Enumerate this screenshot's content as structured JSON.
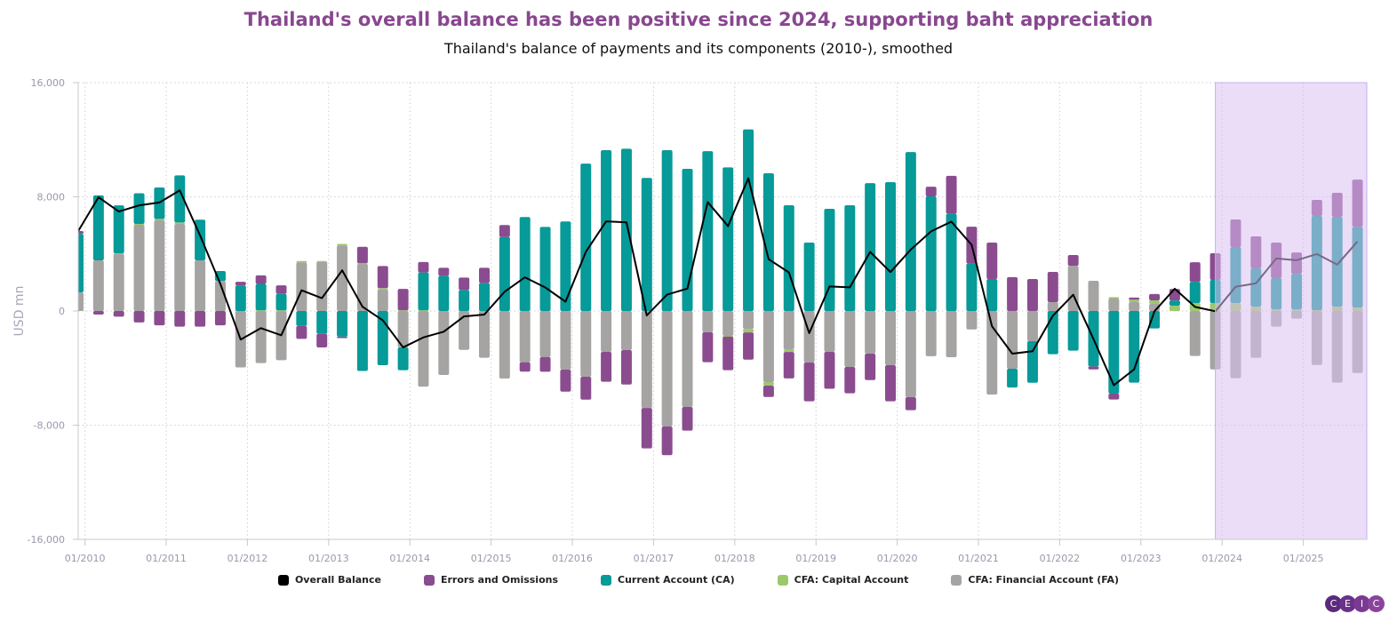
{
  "chart_data": {
    "type": "bar",
    "stacked": true,
    "title": "Thailand's overall balance has been positive since 2024, supporting baht appreciation",
    "subtitle": "Thailand's balance of payments and its components (2010-), smoothed",
    "ylabel": "USD mn",
    "ylim": [
      -16000,
      16000
    ],
    "yticks": [
      "16,000",
      "8,000",
      "0",
      "-8,000",
      "-16,000"
    ],
    "xticks": [
      "01/2010",
      "01/2011",
      "01/2012",
      "01/2013",
      "01/2014",
      "01/2015",
      "01/2016",
      "01/2017",
      "01/2018",
      "01/2019",
      "01/2020",
      "01/2021",
      "01/2022",
      "01/2023",
      "01/2024",
      "01/2025"
    ],
    "grid": true,
    "legend_position": "bottom",
    "shaded_period": {
      "from": "12/2023",
      "to": "end",
      "color": "#ecdff7"
    },
    "x": [
      "12/2009",
      "03/2010",
      "06/2010",
      "09/2010",
      "12/2010",
      "03/2011",
      "06/2011",
      "09/2011",
      "12/2011",
      "03/2012",
      "06/2012",
      "09/2012",
      "12/2012",
      "03/2013",
      "06/2013",
      "09/2013",
      "12/2013",
      "03/2014",
      "06/2014",
      "09/2014",
      "12/2014",
      "03/2015",
      "06/2015",
      "09/2015",
      "12/2015",
      "03/2016",
      "06/2016",
      "09/2016",
      "12/2016",
      "03/2017",
      "06/2017",
      "09/2017",
      "12/2017",
      "03/2018",
      "06/2018",
      "09/2018",
      "12/2018",
      "03/2019",
      "06/2019",
      "09/2019",
      "12/2019",
      "03/2020",
      "06/2020",
      "09/2020",
      "12/2020",
      "03/2021",
      "06/2021",
      "09/2021",
      "12/2021",
      "03/2022",
      "06/2022",
      "09/2022",
      "12/2022",
      "03/2023",
      "06/2023",
      "09/2023",
      "12/2023",
      "03/2024",
      "06/2024",
      "09/2024",
      "12/2024",
      "03/2025",
      "06/2025",
      "09/2025"
    ],
    "series": [
      {
        "name": "CFA: Financial Account (FA)",
        "type": "bar",
        "color": "#a5a4a2",
        "values": [
          1300,
          3550,
          4000,
          6050,
          6350,
          6100,
          3550,
          2100,
          -3950,
          -3650,
          -3450,
          3400,
          3450,
          4600,
          3300,
          1500,
          -2550,
          -5300,
          -4480,
          -2720,
          -3280,
          -4730,
          -3590,
          -3220,
          -4110,
          -4610,
          -2860,
          -2740,
          -6790,
          -8090,
          -6720,
          -1490,
          -1740,
          -1250,
          -4980,
          -2680,
          -3610,
          -2860,
          -3920,
          -2990,
          -3800,
          -6040,
          -3170,
          -3240,
          -1290,
          -5850,
          -4050,
          -2120,
          620,
          3170,
          2120,
          870,
          620,
          500,
          0,
          -3150,
          -4090,
          -4710,
          -3280,
          -1100,
          -540,
          -3780,
          -5020,
          -4340
        ]
      },
      {
        "name": "CFA: Capital Account",
        "type": "bar",
        "color": "#9dc86a",
        "values": [
          0,
          0,
          50,
          50,
          100,
          100,
          0,
          0,
          0,
          50,
          50,
          100,
          50,
          100,
          50,
          100,
          50,
          50,
          0,
          0,
          0,
          0,
          0,
          0,
          0,
          0,
          0,
          0,
          0,
          0,
          0,
          0,
          -50,
          -250,
          -250,
          -190,
          0,
          0,
          0,
          0,
          0,
          0,
          0,
          0,
          0,
          0,
          0,
          0,
          0,
          0,
          0,
          100,
          170,
          250,
          370,
          560,
          560,
          560,
          310,
          120,
          120,
          60,
          310,
          250
        ]
      },
      {
        "name": "Current Account (CA)",
        "type": "bar",
        "color": "#069a98",
        "values": [
          4100,
          4550,
          3350,
          2150,
          2200,
          3300,
          2850,
          700,
          1800,
          1850,
          1150,
          -1050,
          -1600,
          -1800,
          -4200,
          -3800,
          -1600,
          2650,
          2470,
          1470,
          1970,
          5190,
          6580,
          5890,
          6270,
          10330,
          11270,
          11370,
          9320,
          11270,
          9960,
          11200,
          10060,
          12720,
          9650,
          7410,
          4790,
          7160,
          7410,
          8960,
          9030,
          11140,
          8030,
          6810,
          3320,
          2240,
          -1310,
          -2910,
          -3030,
          -2780,
          -3880,
          -5790,
          -5020,
          -1220,
          370,
          1490,
          1620,
          3920,
          2680,
          2180,
          2490,
          6600,
          6290,
          5660
        ]
      },
      {
        "name": "Errors and Omissions",
        "type": "bar",
        "color": "#8a4c8f",
        "values": [
          200,
          -250,
          -400,
          -800,
          -1000,
          -1100,
          -1100,
          -1000,
          250,
          600,
          600,
          -900,
          -950,
          -100,
          1150,
          1550,
          1500,
          730,
          560,
          870,
          1060,
          830,
          -660,
          -1040,
          -1540,
          -1600,
          -2100,
          -2410,
          -2840,
          -2010,
          -1660,
          -2100,
          -2360,
          -1910,
          -790,
          -1850,
          -2720,
          -2590,
          -1850,
          -1850,
          -2530,
          -910,
          680,
          2660,
          2590,
          2550,
          2370,
          2240,
          2120,
          750,
          -210,
          -410,
          150,
          440,
          810,
          1370,
          1870,
          1930,
          2240,
          2490,
          1490,
          1120,
          1680,
          3300
        ]
      },
      {
        "name": "Overall Balance",
        "type": "line",
        "color": "#000000",
        "values": [
          5600,
          7970,
          6970,
          7400,
          7600,
          8450,
          5300,
          1900,
          -2000,
          -1200,
          -1700,
          1450,
          900,
          2850,
          300,
          -650,
          -2550,
          -1850,
          -1450,
          -380,
          -250,
          1350,
          2360,
          1650,
          650,
          4150,
          6280,
          6210,
          -310,
          1150,
          1570,
          7630,
          5950,
          9300,
          3630,
          2700,
          -1550,
          1720,
          1660,
          4140,
          2730,
          4300,
          5580,
          6260,
          4630,
          -1070,
          -2990,
          -2820,
          -330,
          1140,
          -1970,
          -5200,
          -4090,
          -20,
          1560,
          290,
          -20,
          1700,
          1940,
          3680,
          3560,
          3990,
          3250,
          4870
        ]
      }
    ],
    "legend": [
      {
        "label": "Overall Balance",
        "color": "#000000"
      },
      {
        "label": "Errors and Omissions",
        "color": "#8a4c8f"
      },
      {
        "label": "Current Account (CA)",
        "color": "#069a98"
      },
      {
        "label": "CFA: Capital Account",
        "color": "#9dc86a"
      },
      {
        "label": "CFA: Financial Account (FA)",
        "color": "#a5a4a2"
      }
    ]
  },
  "logo": {
    "text": "CEIC",
    "letters": [
      "C",
      "E",
      "I",
      "C"
    ],
    "colors": [
      "#5b2a7e",
      "#6a3189",
      "#7a3a92",
      "#8a449c"
    ]
  }
}
